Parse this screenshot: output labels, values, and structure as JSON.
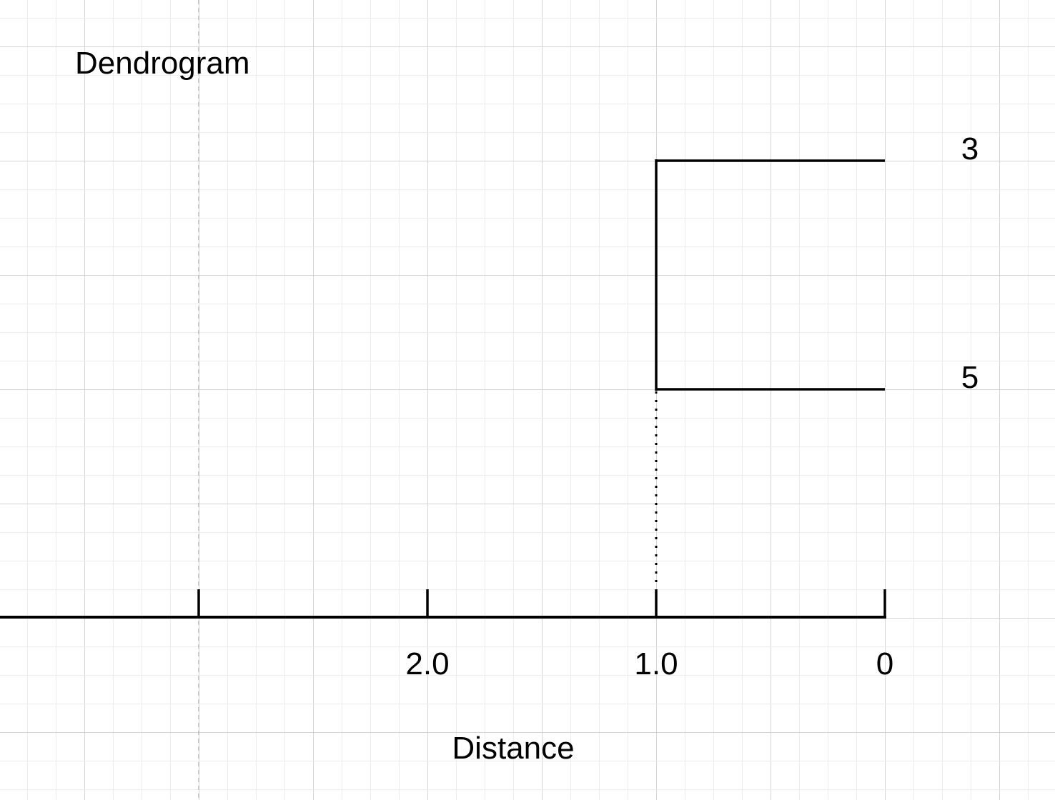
{
  "title": "Dendrogram",
  "xlabel": "Distance",
  "axis": {
    "orientation": "reversed",
    "ticks": [
      {
        "value": 3.0,
        "label": ""
      },
      {
        "value": 2.0,
        "label": "2.0"
      },
      {
        "value": 1.0,
        "label": "1.0"
      },
      {
        "value": 0,
        "label": "0"
      }
    ]
  },
  "leaves": [
    {
      "label": "3"
    },
    {
      "label": "5"
    }
  ],
  "merges": [
    {
      "leaves": [
        "3",
        "5"
      ],
      "distance": 1.0
    }
  ],
  "colors": {
    "background": "#ffffff",
    "grid_minor": "#ececec",
    "grid_major": "#d4d4d4",
    "ink": "#000000",
    "guide": "#bbbbbb"
  }
}
